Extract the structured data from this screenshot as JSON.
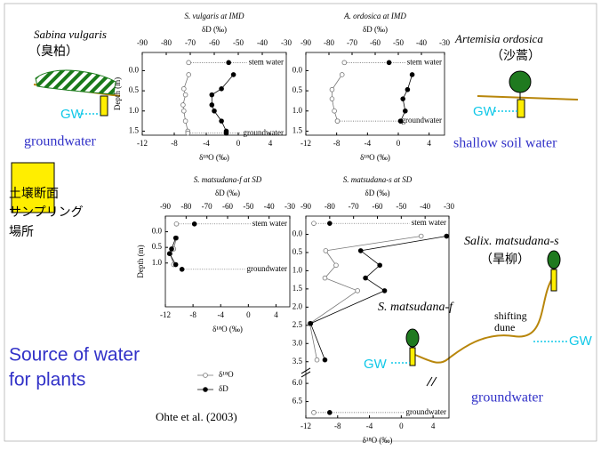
{
  "chart_data": [
    {
      "type": "profile",
      "title": "S. vulgaris at IMD",
      "x2label": "δD (‰)",
      "xlabel": "δ¹⁸O (‰)",
      "ylabel": "Depth (m)",
      "xlim": [
        -12,
        6
      ],
      "xticks": [
        -12,
        -8,
        -4,
        0,
        4
      ],
      "x2lim": [
        -90,
        -30
      ],
      "x2ticks": [
        -90,
        -80,
        -70,
        -60,
        -50,
        -40,
        -30
      ],
      "ylim": [
        -0.45,
        1.6
      ],
      "yticks": [
        {
          "value": 0,
          "label": "0.0"
        },
        0.5,
        {
          "value": 1,
          "label": "1.0"
        },
        1.5
      ],
      "series": [
        {
          "axis": "x",
          "marker": "open",
          "color": "#777777",
          "depth": [
            0.1,
            0.45,
            0.6,
            0.85,
            1.0,
            1.25,
            1.5
          ],
          "values": [
            -6.2,
            -6.8,
            -6.6,
            -6.9,
            -6.8,
            -6.6,
            -6.3
          ]
        },
        {
          "axis": "x2",
          "marker": "filled",
          "color": "#000000",
          "depth": [
            0.1,
            0.45,
            0.6,
            0.85,
            1.0,
            1.25,
            1.5
          ],
          "values": [
            -52,
            -57,
            -61,
            -61,
            -60,
            -57,
            -55
          ]
        }
      ],
      "points": [
        {
          "label": "stem water",
          "depth": -0.2,
          "d18O": -6.2,
          "dD": -54
        },
        {
          "label": "groundwater",
          "depth": 1.55,
          "d18O": -6.3,
          "dD": -55
        }
      ]
    },
    {
      "type": "profile",
      "title": "A. ordosica at IMD",
      "x2label": "δD (‰)",
      "xlabel": "δ¹⁸O (‰)",
      "xlim": [
        -12,
        6
      ],
      "xticks": [
        -12,
        -8,
        -4,
        0,
        4
      ],
      "x2lim": [
        -90,
        -30
      ],
      "x2ticks": [
        -90,
        -80,
        -70,
        -60,
        -50,
        -40,
        -30
      ],
      "ylim": [
        -0.45,
        1.6
      ],
      "yticks": [
        {
          "value": 0,
          "label": "0.0"
        },
        0.5,
        {
          "value": 1,
          "label": "1.0"
        },
        1.5
      ],
      "series": [
        {
          "axis": "x",
          "marker": "open",
          "color": "#777777",
          "depth": [
            0.1,
            0.47,
            0.7,
            1.0,
            1.25
          ],
          "values": [
            -7.3,
            -8.6,
            -8.6,
            -8.3,
            -7.9
          ]
        },
        {
          "axis": "x2",
          "marker": "filled",
          "color": "#000000",
          "depth": [
            0.1,
            0.47,
            0.7,
            1.0,
            1.25
          ],
          "values": [
            -44,
            -46,
            -48,
            -47,
            -49
          ]
        }
      ],
      "points": [
        {
          "label": "stem water",
          "depth": -0.2,
          "d18O": -7.0,
          "dD": -54
        },
        {
          "label": "groundwater",
          "depth": 1.25,
          "d18O": -7.9,
          "dD": -49
        }
      ]
    },
    {
      "type": "profile",
      "title": "S. matsudana-f at SD",
      "x2label": "δD (‰)",
      "xlabel": "δ¹⁸O (‰)",
      "ylabel": "Depth (m)",
      "legend": true,
      "xlim": [
        -12,
        6
      ],
      "xticks": [
        -12,
        -8,
        -4,
        0,
        4
      ],
      "x2lim": [
        -90,
        -30
      ],
      "x2ticks": [
        -90,
        -80,
        -70,
        -60,
        -50,
        -40,
        -30
      ],
      "ylim": [
        -0.5,
        2.4
      ],
      "yticks": [
        {
          "value": 0,
          "label": "0.0"
        },
        0.5,
        {
          "value": 1,
          "label": "1.0"
        }
      ],
      "series": [
        {
          "name": "δ¹⁸O",
          "axis": "x",
          "marker": "open",
          "color": "#777777",
          "depth": [
            0.2,
            0.55,
            0.7,
            1.05
          ],
          "values": [
            -10.4,
            -10.8,
            -11.3,
            -10.8
          ]
        },
        {
          "name": "δD",
          "axis": "x2",
          "marker": "filled",
          "color": "#000000",
          "depth": [
            0.2,
            0.55,
            0.7,
            1.05
          ],
          "values": [
            -85,
            -87,
            -88,
            -85
          ]
        }
      ],
      "points": [
        {
          "label": "stem water",
          "depth": -0.25,
          "d18O": -10.4,
          "dD": -76
        },
        {
          "label": "groundwater",
          "depth": 1.2,
          "dD": -82
        }
      ]
    },
    {
      "type": "profile",
      "title": "S. matsudana-s at SD",
      "x2label": "δD (‰)",
      "xlabel": "δ¹⁸O (‰)",
      "xlim": [
        -12,
        6
      ],
      "xticks": [
        -12,
        -8,
        -4,
        0,
        4
      ],
      "x2lim": [
        -90,
        -30
      ],
      "x2ticks": [
        -90,
        -80,
        -70,
        -60,
        -50,
        -40,
        -30
      ],
      "ylim": [
        -0.5,
        6.95
      ],
      "ybreak": [
        3.7,
        5.8
      ],
      "yticks": [
        {
          "value": 0,
          "label": "0.0"
        },
        0.5,
        {
          "value": 1,
          "label": "1.0"
        },
        1.5,
        {
          "value": 2,
          "label": "2.0"
        },
        2.5,
        {
          "value": 3,
          "label": "3.0"
        },
        3.5,
        {
          "value": 6,
          "label": "6.0"
        },
        6.5
      ],
      "series": [
        {
          "axis": "x",
          "marker": "open",
          "color": "#777777",
          "depth": [
            0.05,
            0.45,
            0.85,
            1.2,
            1.55,
            2.45,
            3.45
          ],
          "values": [
            2.5,
            -9.5,
            -8.2,
            -9.6,
            -5.5,
            -11.5,
            -10.6
          ]
        },
        {
          "axis": "x2",
          "marker": "filled",
          "color": "#000000",
          "depth": [
            0.05,
            0.45,
            0.85,
            1.2,
            1.55,
            2.45,
            3.45
          ],
          "values": [
            -31,
            -67,
            -59,
            -65,
            -57,
            -88,
            -82
          ]
        }
      ],
      "points": [
        {
          "label": "stem water",
          "depth": -0.3,
          "d18O": -11,
          "dD": -80
        },
        {
          "label": "groundwater",
          "depth": 6.8,
          "d18O": -11,
          "dD": -80
        }
      ]
    }
  ],
  "slide": {
    "sabina_name": "Sabina vulgaris",
    "sabina_cn": "（臭柏）",
    "sabina_gw": "GW",
    "sabina_water": "groundwater",
    "artemisia_name": "Artemisia ordosica",
    "artemisia_cn": "（沙蒿）",
    "artemisia_gw": "GW",
    "artemisia_water": "shallow soil water",
    "sampling": [
      "土壌断面",
      "サンプリング",
      "場所"
    ],
    "source": [
      "Source of water",
      "for plants"
    ],
    "citation": "Ohte et al. (2003)",
    "salix_s": "Salix. matsudana-s",
    "salix_cn": "（旱柳）",
    "salix_f": "S. matsudana-f",
    "dune": [
      "shifting",
      "dune"
    ],
    "gw_f": "GW",
    "gw_s": "GW",
    "salix_water": "groundwater"
  }
}
